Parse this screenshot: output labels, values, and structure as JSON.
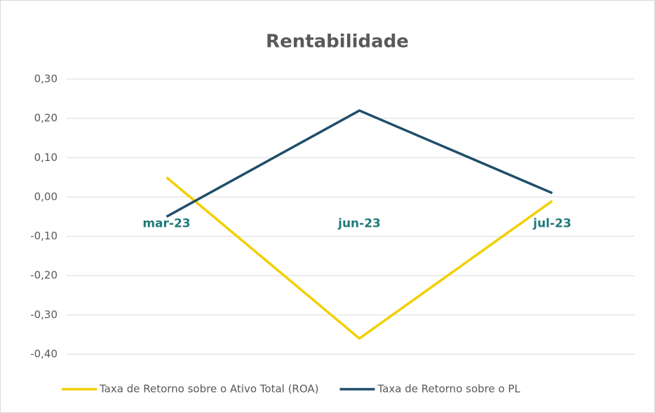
{
  "chart_data": {
    "type": "line",
    "title": "Rentabilidade",
    "categories": [
      "mar-23",
      "jun-23",
      "jul-23"
    ],
    "series": [
      {
        "name": "Taxa de Retorno sobre o Ativo Total (ROA)",
        "color": "#f2cf00",
        "values": [
          0.05,
          -0.36,
          -0.01
        ]
      },
      {
        "name": "Taxa de Retorno sobre o PL",
        "color": "#1f4e69",
        "values": [
          -0.05,
          0.22,
          0.01
        ]
      }
    ],
    "ylim": [
      -0.4,
      0.3
    ],
    "yticks": [
      {
        "value": 0.3,
        "label": "0,30"
      },
      {
        "value": 0.2,
        "label": "0,20"
      },
      {
        "value": 0.1,
        "label": "0,10"
      },
      {
        "value": 0,
        "label": "0,00"
      },
      {
        "value": -0.1,
        "label": "-0,10"
      },
      {
        "value": -0.2,
        "label": "-0,20"
      },
      {
        "value": -0.3,
        "label": "-0,30"
      },
      {
        "value": -0.4,
        "label": "-0,40"
      }
    ],
    "grid": true,
    "category_label_color": "#1f7a7a",
    "legend": "bottom"
  }
}
